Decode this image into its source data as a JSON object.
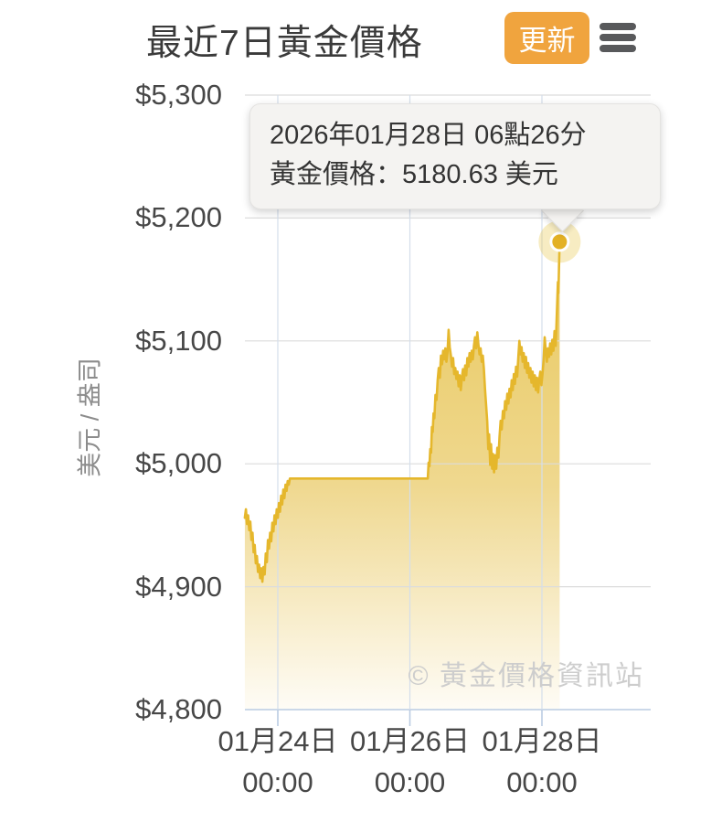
{
  "header": {
    "title": "最近7日黃金價格",
    "refresh_label": "更新"
  },
  "tooltip": {
    "line1": "2026年01月28日 06點26分",
    "line2": "黃金價格：5180.63 美元"
  },
  "chart_data": {
    "type": "area",
    "title": "最近7日黃金價格",
    "ylabel": "美元 / 盎司",
    "watermark": "© 黃金價格資訊站",
    "ylim": [
      4800,
      5300
    ],
    "xlim_hours": [
      -12,
      135.5
    ],
    "x_unit": "hours relative to 2026-01-24 00:00",
    "grid": true,
    "y_ticks": [
      {
        "value": 5300,
        "label": "$5,300"
      },
      {
        "value": 5200,
        "label": "$5,200"
      },
      {
        "value": 5100,
        "label": "$5,100"
      },
      {
        "value": 5000,
        "label": "$5,000"
      },
      {
        "value": 4900,
        "label": "$4,900"
      },
      {
        "value": 4800,
        "label": "$4,800"
      }
    ],
    "x_ticks": [
      {
        "hour": 0,
        "label": "01月24日",
        "label2": "00:00"
      },
      {
        "hour": 48,
        "label": "01月26日",
        "label2": "00:00"
      },
      {
        "hour": 96,
        "label": "01月28日",
        "label2": "00:00"
      }
    ],
    "colors": {
      "line": "#E5B72C",
      "fill_top": "#E8C350",
      "fill_mid": "#EFD88F",
      "fill_bottom": "#FEFCF6",
      "grid_h": "#DCDCDC",
      "grid_v": "#D4DEEB",
      "axis": "#BACBE2",
      "marker": "#E3B125",
      "halo": "rgba(231,196,70,0.33)",
      "accent_button": "#F0A43E"
    },
    "highlight_point": {
      "date": "2026-01-28",
      "time": "06:26",
      "hour": 102.43,
      "price": 5180.63
    },
    "series": [
      {
        "name": "黃金價格",
        "points": [
          [
            -12,
            4956
          ],
          [
            -11.6,
            4963
          ],
          [
            -11.2,
            4951
          ],
          [
            -10.8,
            4958
          ],
          [
            -10.4,
            4946
          ],
          [
            -10,
            4953
          ],
          [
            -9.6,
            4938
          ],
          [
            -9.2,
            4944
          ],
          [
            -8.8,
            4928
          ],
          [
            -8.4,
            4934
          ],
          [
            -8,
            4919
          ],
          [
            -7.6,
            4925
          ],
          [
            -7.2,
            4912
          ],
          [
            -6.8,
            4918
          ],
          [
            -6.4,
            4907
          ],
          [
            -6,
            4915
          ],
          [
            -5.6,
            4904
          ],
          [
            -5.2,
            4916
          ],
          [
            -4.8,
            4910
          ],
          [
            -4.4,
            4927
          ],
          [
            -4,
            4920
          ],
          [
            -3.6,
            4938
          ],
          [
            -3.2,
            4931
          ],
          [
            -2.8,
            4944
          ],
          [
            -2.4,
            4937
          ],
          [
            -2,
            4952
          ],
          [
            -1.6,
            4945
          ],
          [
            -1.2,
            4958
          ],
          [
            -0.8,
            4951
          ],
          [
            -0.4,
            4963
          ],
          [
            0,
            4956
          ],
          [
            0.4,
            4968
          ],
          [
            0.8,
            4961
          ],
          [
            1.2,
            4974
          ],
          [
            1.6,
            4967
          ],
          [
            2,
            4979
          ],
          [
            2.4,
            4972
          ],
          [
            2.8,
            4983
          ],
          [
            3.2,
            4978
          ],
          [
            3.6,
            4986
          ],
          [
            4,
            4983
          ],
          [
            4.4,
            4988
          ],
          [
            6,
            4988
          ],
          [
            12,
            4988
          ],
          [
            18,
            4988
          ],
          [
            24,
            4988
          ],
          [
            30,
            4988
          ],
          [
            36,
            4988
          ],
          [
            42,
            4988
          ],
          [
            48,
            4988
          ],
          [
            54.5,
            4988
          ],
          [
            54.8,
            5001
          ],
          [
            55.1,
            4998
          ],
          [
            55.4,
            5012
          ],
          [
            55.7,
            5009
          ],
          [
            56,
            5030
          ],
          [
            56.3,
            5026
          ],
          [
            56.6,
            5041
          ],
          [
            56.9,
            5037
          ],
          [
            57.3,
            5056
          ],
          [
            57.7,
            5052
          ],
          [
            58.1,
            5068
          ],
          [
            58.5,
            5078
          ],
          [
            58.9,
            5070
          ],
          [
            59.3,
            5088
          ],
          [
            59.7,
            5081
          ],
          [
            60.1,
            5092
          ],
          [
            60.5,
            5085
          ],
          [
            60.9,
            5094
          ],
          [
            61.3,
            5083
          ],
          [
            61.7,
            5091
          ],
          [
            62.1,
            5109
          ],
          [
            62.5,
            5095
          ],
          [
            62.9,
            5088
          ],
          [
            63.3,
            5079
          ],
          [
            63.7,
            5086
          ],
          [
            64.1,
            5073
          ],
          [
            64.5,
            5078
          ],
          [
            64.9,
            5069
          ],
          [
            65.3,
            5075
          ],
          [
            65.7,
            5063
          ],
          [
            66.1,
            5072
          ],
          [
            66.5,
            5060
          ],
          [
            66.9,
            5070
          ],
          [
            67.3,
            5077
          ],
          [
            67.7,
            5068
          ],
          [
            68.1,
            5080
          ],
          [
            68.5,
            5072
          ],
          [
            68.9,
            5086
          ],
          [
            69.3,
            5079
          ],
          [
            69.7,
            5090
          ],
          [
            70.1,
            5083
          ],
          [
            70.5,
            5092
          ],
          [
            70.9,
            5085
          ],
          [
            71.3,
            5096
          ],
          [
            71.7,
            5103
          ],
          [
            72.1,
            5094
          ],
          [
            72.5,
            5107
          ],
          [
            72.9,
            5097
          ],
          [
            73.3,
            5089
          ],
          [
            73.7,
            5094
          ],
          [
            74.1,
            5083
          ],
          [
            74.5,
            5088
          ],
          [
            74.9,
            5077
          ],
          [
            75.3,
            5061
          ],
          [
            75.7,
            5048
          ],
          [
            76.1,
            5035
          ],
          [
            76.5,
            5012
          ],
          [
            76.8,
            5024
          ],
          [
            77.2,
            4999
          ],
          [
            77.5,
            5016
          ],
          [
            77.9,
            4996
          ],
          [
            78.2,
            5008
          ],
          [
            78.6,
            4993
          ],
          [
            79,
            5007
          ],
          [
            79.4,
            4996
          ],
          [
            79.8,
            5013
          ],
          [
            80.2,
            5005
          ],
          [
            80.6,
            5022
          ],
          [
            81,
            5035
          ],
          [
            81.4,
            5028
          ],
          [
            81.8,
            5043
          ],
          [
            82.2,
            5037
          ],
          [
            82.6,
            5051
          ],
          [
            83,
            5044
          ],
          [
            83.4,
            5057
          ],
          [
            83.8,
            5049
          ],
          [
            84.2,
            5061
          ],
          [
            84.6,
            5054
          ],
          [
            85,
            5068
          ],
          [
            85.4,
            5060
          ],
          [
            85.8,
            5073
          ],
          [
            86.2,
            5065
          ],
          [
            86.6,
            5079
          ],
          [
            87,
            5071
          ],
          [
            87.4,
            5086
          ],
          [
            87.8,
            5100
          ],
          [
            88.2,
            5089
          ],
          [
            88.6,
            5095
          ],
          [
            89,
            5083
          ],
          [
            89.4,
            5090
          ],
          [
            89.8,
            5078
          ],
          [
            90.2,
            5087
          ],
          [
            90.6,
            5074
          ],
          [
            91,
            5082
          ],
          [
            91.4,
            5070
          ],
          [
            91.8,
            5078
          ],
          [
            92.2,
            5066
          ],
          [
            92.6,
            5075
          ],
          [
            93,
            5063
          ],
          [
            93.4,
            5072
          ],
          [
            93.8,
            5060
          ],
          [
            94.2,
            5070
          ],
          [
            94.6,
            5058
          ],
          [
            95,
            5068
          ],
          [
            95.4,
            5075
          ],
          [
            95.8,
            5064
          ],
          [
            96.2,
            5073
          ],
          [
            96.6,
            5084
          ],
          [
            97,
            5103
          ],
          [
            97.4,
            5092
          ],
          [
            97.8,
            5083
          ],
          [
            98.2,
            5094
          ],
          [
            98.6,
            5087
          ],
          [
            99,
            5098
          ],
          [
            99.4,
            5089
          ],
          [
            99.8,
            5101
          ],
          [
            100.2,
            5092
          ],
          [
            100.6,
            5108
          ],
          [
            101,
            5096
          ],
          [
            101.4,
            5122
          ],
          [
            101.8,
            5148
          ],
          [
            102,
            5139
          ],
          [
            102.2,
            5161
          ],
          [
            102.43,
            5180.63
          ]
        ]
      }
    ]
  }
}
